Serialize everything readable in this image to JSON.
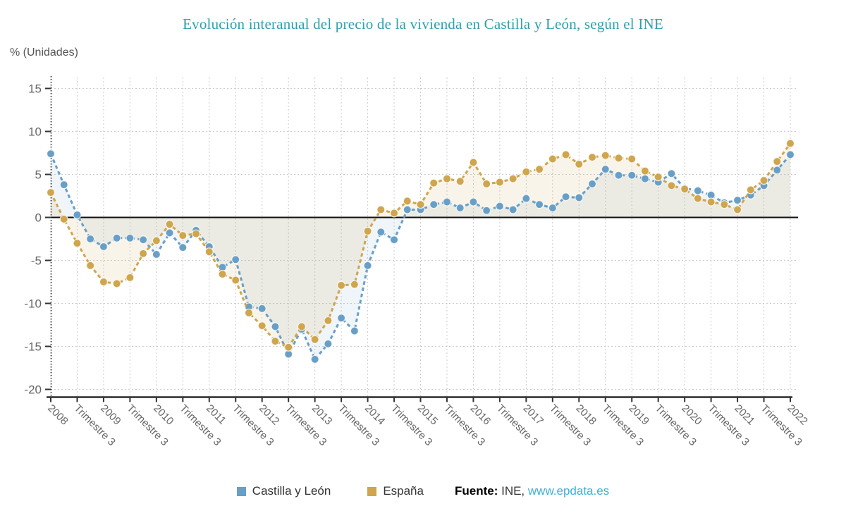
{
  "title": "Evolución interanual del precio de la vivienda en Castilla y León, según el INE",
  "y_axis_title": "% (Unidades)",
  "source": {
    "label": "Fuente:",
    "name": " INE, ",
    "link": "www.epdata.es",
    "link_color": "#3eafd4"
  },
  "chart_data": {
    "type": "line",
    "title": "Evolución interanual del precio de la vivienda en Castilla y León, según el INE",
    "ylabel": "% (Unidades)",
    "frequency": "quarterly",
    "x_start": "2008 T1",
    "x_end": "2022 T1",
    "x_tick_labels": [
      "2008",
      "Trimestre 3",
      "2009",
      "Trimestre 3",
      "2010",
      "Trimestre 3",
      "2011",
      "Trimestre 3",
      "2012",
      "Trimestre 3",
      "2013",
      "Trimestre 3",
      "2014",
      "Trimestre 3",
      "2015",
      "Trimestre 3",
      "2016",
      "Trimestre 3",
      "2017",
      "Trimestre 3",
      "2018",
      "Trimestre 3",
      "2019",
      "Trimestre 3",
      "2020",
      "Trimestre 3",
      "2021",
      "Trimestre 3",
      "2022"
    ],
    "categories": [
      "2008 T1",
      "2008 T2",
      "2008 T3",
      "2008 T4",
      "2009 T1",
      "2009 T2",
      "2009 T3",
      "2009 T4",
      "2010 T1",
      "2010 T2",
      "2010 T3",
      "2010 T4",
      "2011 T1",
      "2011 T2",
      "2011 T3",
      "2011 T4",
      "2012 T1",
      "2012 T2",
      "2012 T3",
      "2012 T4",
      "2013 T1",
      "2013 T2",
      "2013 T3",
      "2013 T4",
      "2014 T1",
      "2014 T2",
      "2014 T3",
      "2014 T4",
      "2015 T1",
      "2015 T2",
      "2015 T3",
      "2015 T4",
      "2016 T1",
      "2016 T2",
      "2016 T3",
      "2016 T4",
      "2017 T1",
      "2017 T2",
      "2017 T3",
      "2017 T4",
      "2018 T1",
      "2018 T2",
      "2018 T3",
      "2018 T4",
      "2019 T1",
      "2019 T2",
      "2019 T3",
      "2019 T4",
      "2020 T1",
      "2020 T2",
      "2020 T3",
      "2020 T4",
      "2021 T1",
      "2021 T2",
      "2021 T3",
      "2021 T4",
      "2022 T1"
    ],
    "y_ticks": [
      15,
      10,
      5,
      0,
      -5,
      -10,
      -15,
      -20
    ],
    "ylim": [
      -20,
      16.5
    ],
    "grid": true,
    "legend_position": "bottom",
    "series": [
      {
        "name": "Castilla y León",
        "color": "#699fc6",
        "fill": "rgba(105,158,196,0.10)",
        "values": [
          7.4,
          3.8,
          0.3,
          -2.5,
          -3.4,
          -2.4,
          -2.4,
          -2.6,
          -4.3,
          -1.8,
          -3.5,
          -1.5,
          -3.4,
          -5.8,
          -4.9,
          -10.4,
          -10.6,
          -12.7,
          -15.9,
          -13.0,
          -16.5,
          -14.7,
          -11.7,
          -13.2,
          -5.6,
          -1.7,
          -2.6,
          0.9,
          0.9,
          1.5,
          1.8,
          1.1,
          1.8,
          0.8,
          1.3,
          0.9,
          2.2,
          1.5,
          1.1,
          2.4,
          2.3,
          3.9,
          5.6,
          4.9,
          4.9,
          4.5,
          4.1,
          5.1,
          3.4,
          3.1,
          2.6,
          1.7,
          2.0,
          2.6,
          3.7,
          5.5,
          7.3
        ]
      },
      {
        "name": "España",
        "color": "#cfa54d",
        "fill": "rgba(206,166,80,0.12)",
        "values": [
          2.9,
          -0.2,
          -3.0,
          -5.6,
          -7.5,
          -7.7,
          -7.0,
          -4.2,
          -2.7,
          -0.8,
          -2.1,
          -1.9,
          -4.0,
          -6.6,
          -7.3,
          -11.1,
          -12.6,
          -14.4,
          -15.1,
          -12.7,
          -14.2,
          -12.0,
          -7.9,
          -7.8,
          -1.6,
          0.9,
          0.5,
          1.9,
          1.5,
          4.0,
          4.5,
          4.2,
          6.4,
          3.9,
          4.1,
          4.5,
          5.3,
          5.6,
          6.8,
          7.3,
          6.2,
          7.0,
          7.2,
          6.9,
          6.8,
          5.4,
          4.7,
          3.7,
          3.3,
          2.2,
          1.8,
          1.5,
          0.9,
          3.2,
          4.3,
          6.5,
          8.6
        ]
      }
    ]
  }
}
